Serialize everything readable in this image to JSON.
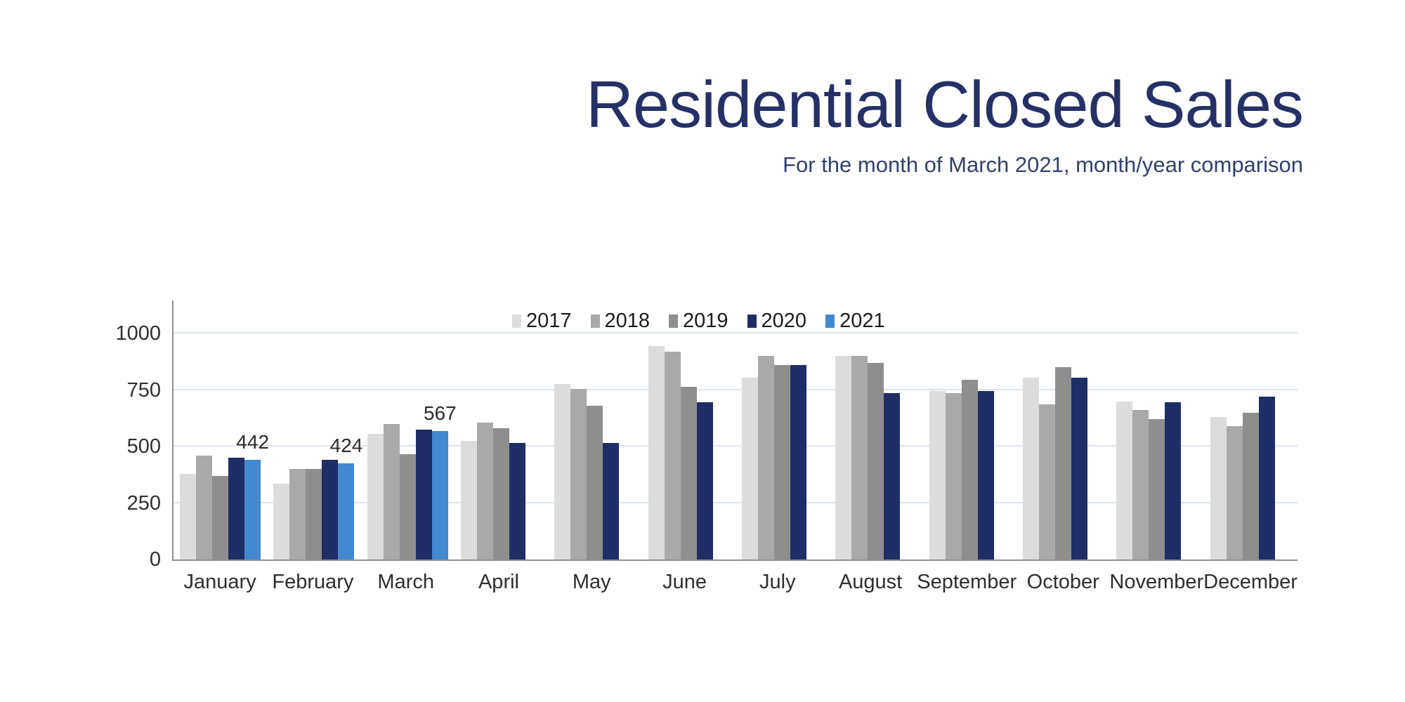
{
  "chart_data": {
    "type": "bar",
    "title": "Residential Closed Sales",
    "subtitle": "For the month of March 2021, month/year comparison",
    "categories": [
      "January",
      "February",
      "March",
      "April",
      "May",
      "June",
      "July",
      "August",
      "September",
      "October",
      "November",
      "December"
    ],
    "series": [
      {
        "name": "2017",
        "color": "#dcdcdc",
        "values": [
          380,
          335,
          555,
          525,
          775,
          945,
          805,
          900,
          745,
          805,
          700,
          630
        ]
      },
      {
        "name": "2018",
        "color": "#a9a9a9",
        "values": [
          460,
          400,
          600,
          605,
          755,
          920,
          900,
          900,
          735,
          685,
          660,
          590
        ]
      },
      {
        "name": "2019",
        "color": "#8e8e8e",
        "values": [
          370,
          400,
          465,
          580,
          680,
          765,
          860,
          870,
          795,
          850,
          620,
          650
        ]
      },
      {
        "name": "2020",
        "color": "#1f2e66",
        "values": [
          450,
          440,
          575,
          515,
          515,
          695,
          860,
          735,
          745,
          805,
          695,
          720
        ]
      },
      {
        "name": "2021",
        "color": "#4289cf",
        "values": [
          442,
          424,
          567,
          null,
          null,
          null,
          null,
          null,
          null,
          null,
          null,
          null
        ],
        "show_labels": true
      }
    ],
    "y_ticks": [
      0,
      250,
      500,
      750,
      1000
    ],
    "ylim": [
      0,
      1150
    ],
    "grid": true,
    "legend_position": "top-center",
    "colors": {
      "title": "#253166",
      "subtitle": "#32406e",
      "axis": "#8f8f8f",
      "gridline": "#dce4f0"
    }
  }
}
